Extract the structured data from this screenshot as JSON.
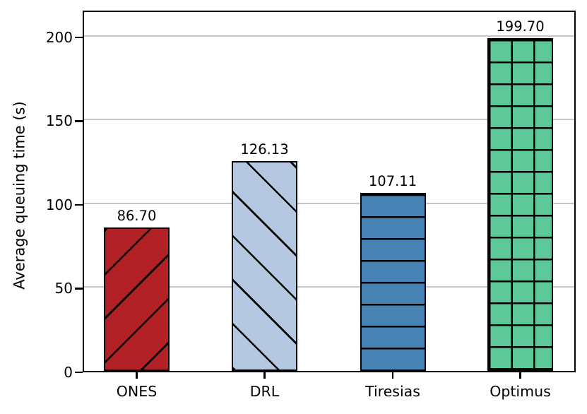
{
  "chart_data": {
    "type": "bar",
    "title": "",
    "xlabel": "",
    "ylabel": "Average queuing time (s)",
    "categories": [
      "ONES",
      "DRL",
      "Tiresias",
      "Optimus"
    ],
    "values": [
      86.7,
      126.13,
      107.11,
      199.7
    ],
    "value_labels": [
      "86.70",
      "126.13",
      "107.11",
      "199.70"
    ],
    "ylim": [
      0,
      216
    ],
    "yticks": [
      0,
      50,
      100,
      150,
      200
    ],
    "ytick_labels": [
      "0",
      "50",
      "100",
      "150",
      "200"
    ],
    "grid": true,
    "legend": false,
    "bar_colors": [
      "#b22125",
      "#b5c8e2",
      "#4783b4",
      "#5ec998"
    ],
    "bar_hatches": [
      "/",
      "\\",
      "-",
      "+"
    ],
    "bar_edge_color": "#000000",
    "hatch_color": "#000000",
    "gridline_color": "#c6c6c6",
    "spine_color": "#000000",
    "text_color": "#000000",
    "background_color": "#ffffff"
  }
}
